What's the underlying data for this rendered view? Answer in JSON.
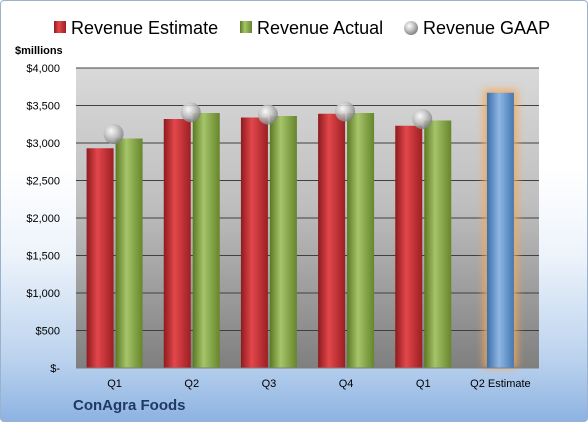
{
  "company": "ConAgra Foods",
  "chart_data": {
    "type": "bar",
    "unit_label": "$millions",
    "categories": [
      "Q1",
      "Q2",
      "Q3",
      "Q4",
      "Q1",
      "Q2 Estimate"
    ],
    "series": [
      {
        "name": "Revenue Estimate",
        "color": "#c0282d",
        "values": [
          2930,
          3320,
          3340,
          3390,
          3230,
          null
        ]
      },
      {
        "name": "Revenue Actual",
        "color": "#7a9a3a",
        "values": [
          3060,
          3400,
          3360,
          3400,
          3300,
          null
        ]
      },
      {
        "name": "Revenue GAAP",
        "color": "#a6a6a6",
        "type": "marker",
        "values": [
          3120,
          3410,
          3380,
          3420,
          3320,
          null
        ]
      }
    ],
    "estimate_bar": {
      "category": "Q2 Estimate",
      "value": 3670,
      "color": "#4f86c6",
      "glow": "#f6a85a"
    },
    "ylim": [
      0,
      4000
    ],
    "yticks": [
      0,
      500,
      1000,
      1500,
      2000,
      2500,
      3000,
      3500,
      4000
    ],
    "ytick_labels": [
      "$-",
      "$500",
      "$1,000",
      "$1,500",
      "$2,000",
      "$2,500",
      "$3,000",
      "$3,500",
      "$4,000"
    ],
    "grid": true,
    "legend": "top"
  }
}
